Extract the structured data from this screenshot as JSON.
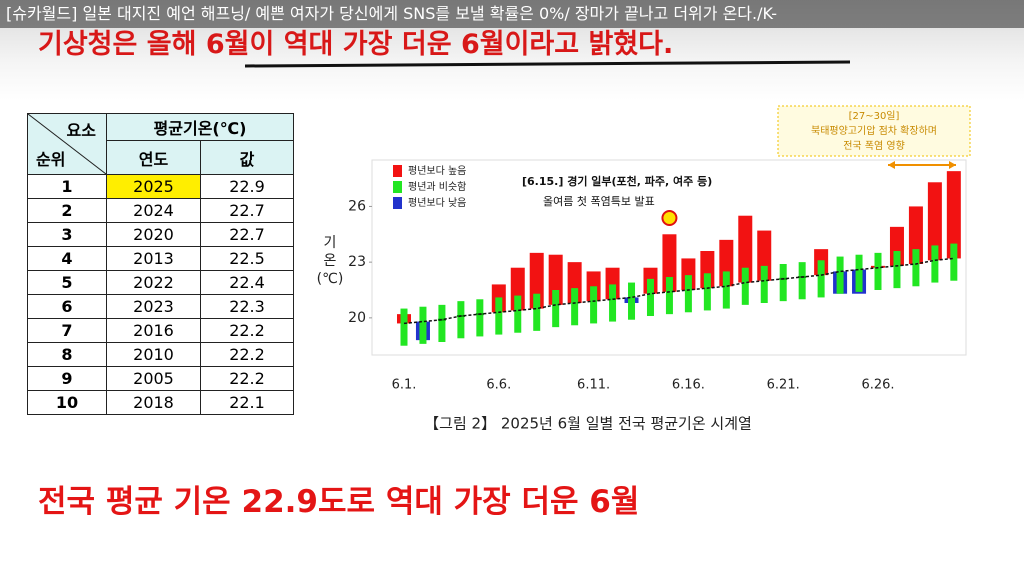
{
  "video_title": "[슈카월드] 일본 대지진 예언 해프닝/ 예쁜 여자가 당신에게 SNS를 보낼 확률은 0%/ 장마가 끝나고 더위가 온다./K-",
  "headline": "기상청은 올해 6월이 역대 가장 더운 6월이라고 밝혔다.",
  "summary": "전국 평균 기온 22.9도로 역대 가장 더운 6월",
  "table": {
    "header_element": "요소",
    "header_rank": "순위",
    "header_group": "평균기온(℃)",
    "columns": [
      "연도",
      "값"
    ],
    "rows": [
      [
        1,
        2025,
        22.9
      ],
      [
        2,
        2024,
        22.7
      ],
      [
        3,
        2020,
        22.7
      ],
      [
        4,
        2013,
        22.5
      ],
      [
        5,
        2022,
        22.4
      ],
      [
        6,
        2023,
        22.3
      ],
      [
        7,
        2016,
        22.2
      ],
      [
        8,
        2010,
        22.2
      ],
      [
        9,
        2005,
        22.2
      ],
      [
        10,
        2018,
        22.1
      ]
    ]
  },
  "chart_data": {
    "type": "bar",
    "title": "【그림 2】 2025년 6월 일별 전국 평균기온 시계열",
    "y_label": [
      "기",
      "온",
      "(℃)"
    ],
    "annotation": [
      "[6.15.] 경기 일부(포천, 파주, 여주 등)",
      "올여름 첫 폭염특보 발표"
    ],
    "note_box": [
      "[27~30일]",
      "북태평양고기압 점차 확장하며",
      "전국 폭염 영향"
    ],
    "categories": [
      "6.1.",
      null,
      null,
      null,
      null,
      "6.6.",
      null,
      null,
      null,
      null,
      "6.11.",
      null,
      null,
      null,
      null,
      "6.16.",
      null,
      null,
      null,
      null,
      "6.21.",
      null,
      null,
      null,
      null,
      "6.26.",
      null,
      null,
      null,
      null
    ],
    "ylim": [
      18,
      28.5
    ],
    "yticks": [
      20,
      23,
      26
    ],
    "normal": [
      19.7,
      19.8,
      19.9,
      20.1,
      20.2,
      20.3,
      20.4,
      20.5,
      20.7,
      20.8,
      20.9,
      21.0,
      21.1,
      21.3,
      21.4,
      21.5,
      21.6,
      21.7,
      21.9,
      22.0,
      22.1,
      22.2,
      22.3,
      22.5,
      22.6,
      22.7,
      22.8,
      22.9,
      23.1,
      23.2
    ],
    "range_low": [
      18.5,
      18.6,
      18.7,
      18.9,
      19.0,
      19.1,
      19.2,
      19.3,
      19.5,
      19.6,
      19.7,
      19.8,
      19.9,
      20.1,
      20.2,
      20.3,
      20.4,
      20.5,
      20.7,
      20.8,
      20.9,
      21.0,
      21.1,
      21.3,
      21.4,
      21.5,
      21.6,
      21.7,
      21.9,
      22.0
    ],
    "range_high": [
      20.5,
      20.6,
      20.7,
      20.9,
      21.0,
      21.1,
      21.2,
      21.3,
      21.5,
      21.6,
      21.7,
      21.8,
      21.9,
      22.1,
      22.2,
      22.3,
      22.4,
      22.5,
      22.7,
      22.8,
      22.9,
      23.0,
      23.1,
      23.3,
      23.4,
      23.5,
      23.6,
      23.7,
      23.9,
      24.0
    ],
    "series": [
      {
        "name": "평년보다 높음",
        "color": "#f21212",
        "values": [
          20.2,
          null,
          null,
          null,
          null,
          21.8,
          22.7,
          23.5,
          23.4,
          23.0,
          22.5,
          22.7,
          null,
          22.7,
          24.5,
          23.2,
          23.6,
          24.2,
          25.5,
          24.7,
          null,
          null,
          23.7,
          null,
          null,
          22.8,
          24.9,
          26.0,
          27.3,
          27.9
        ]
      },
      {
        "name": "평년과 비슷함",
        "color": "#22e622",
        "values": [
          null,
          null,
          19.9,
          20.1,
          20.2,
          null,
          null,
          null,
          null,
          null,
          null,
          null,
          null,
          null,
          null,
          null,
          null,
          null,
          null,
          null,
          22.1,
          22.2,
          null,
          null,
          null,
          null,
          null,
          null,
          null,
          null
        ]
      },
      {
        "name": "평년보다 낮음",
        "color": "#2233cc",
        "values": [
          null,
          18.8,
          null,
          null,
          null,
          null,
          null,
          null,
          null,
          null,
          null,
          null,
          20.8,
          null,
          null,
          null,
          null,
          null,
          null,
          null,
          null,
          null,
          null,
          21.3,
          21.3,
          null,
          null,
          null,
          null,
          null
        ]
      }
    ]
  }
}
